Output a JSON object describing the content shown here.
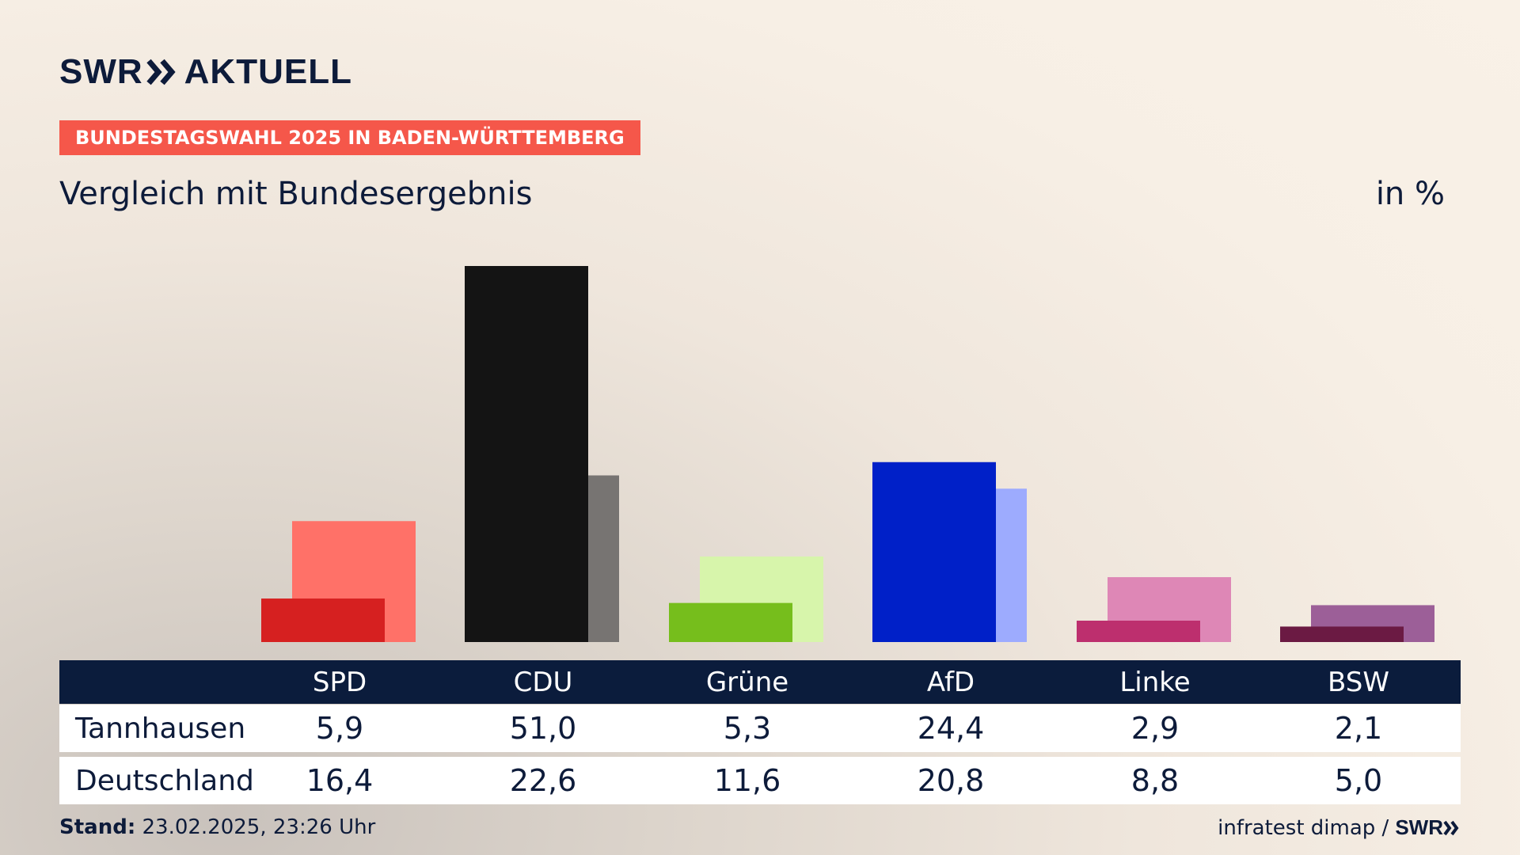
{
  "logo": {
    "brand": "SWR",
    "product": "AKTUELL"
  },
  "banner": "BUNDESTAGSWAHL 2025 IN BADEN-WÜRTTEMBERG",
  "subtitle": "Vergleich mit Bundesergebnis",
  "unit": "in %",
  "colors": {
    "background": "#f7efe5",
    "text": "#0d1b3a",
    "banner": "#f5574a",
    "table_header": "#0b1c3c"
  },
  "chart_data": {
    "type": "bar",
    "categories": [
      "SPD",
      "CDU",
      "Grüne",
      "AfD",
      "Linke",
      "BSW"
    ],
    "series": [
      {
        "name": "Tannhausen",
        "values": [
          5.9,
          51.0,
          5.3,
          24.4,
          2.9,
          2.1
        ],
        "colors": [
          "#d62020",
          "#141414",
          "#76be1c",
          "#0020c8",
          "#bd2f6e",
          "#6b1a43"
        ]
      },
      {
        "name": "Deutschland",
        "values": [
          16.4,
          22.6,
          11.6,
          20.8,
          8.8,
          5.0
        ],
        "colors": [
          "#ff7168",
          "#777472",
          "#d7f5ab",
          "#9dabfe",
          "#de87b6",
          "#9c5f98"
        ]
      }
    ],
    "ylim": [
      0,
      51.0
    ]
  },
  "table": {
    "headers": [
      "SPD",
      "CDU",
      "Grüne",
      "AfD",
      "Linke",
      "BSW"
    ],
    "rows": [
      {
        "label": "Tannhausen",
        "values": [
          "5,9",
          "51,0",
          "5,3",
          "24,4",
          "2,9",
          "2,1"
        ]
      },
      {
        "label": "Deutschland",
        "values": [
          "16,4",
          "22,6",
          "11,6",
          "20,8",
          "8,8",
          "5,0"
        ]
      }
    ]
  },
  "footer": {
    "stand_label": "Stand:",
    "stand_value": "23.02.2025, 23:26 Uhr",
    "source": "infratest dimap /",
    "source_brand": "SWR"
  }
}
